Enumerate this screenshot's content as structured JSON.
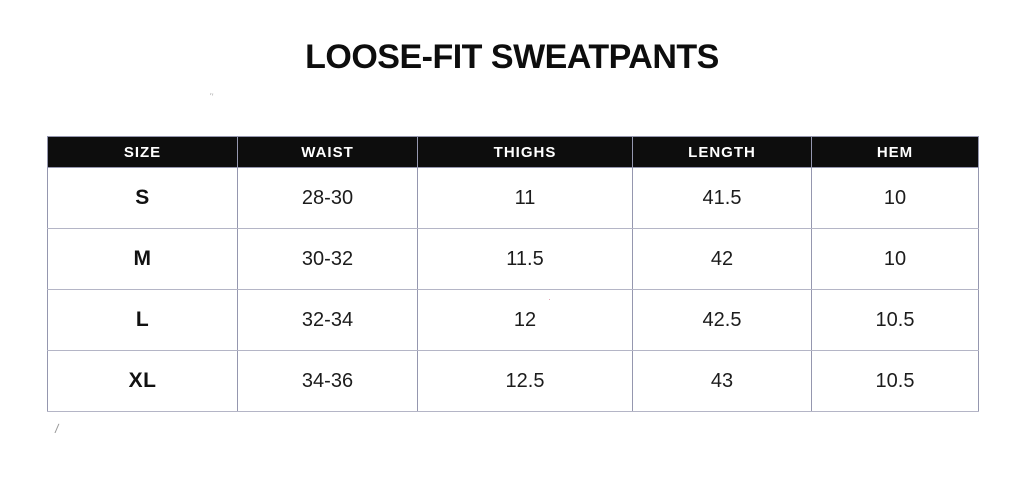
{
  "chart_data": {
    "type": "table",
    "title": "LOOSE-FIT SWEATPANTS",
    "columns": [
      "SIZE",
      "WAIST",
      "THIGHS",
      "LENGTH",
      "HEM"
    ],
    "rows": [
      [
        "S",
        "28-30",
        "11",
        "41.5",
        "10"
      ],
      [
        "M",
        "30-32",
        "11.5",
        "42",
        "10"
      ],
      [
        "L",
        "32-34",
        "12",
        "42.5",
        "10.5"
      ],
      [
        "XL",
        "34-36",
        "12.5",
        "43",
        "10.5"
      ]
    ]
  },
  "colors": {
    "background": "#ffffff",
    "title_text": "#0d0d0d",
    "header_bg": "#0d0d0d",
    "header_text": "#ffffff",
    "cell_text": "#1c1c1c",
    "grid_vertical": "#9597af",
    "grid_horizontal": "#b4b5c6"
  },
  "specks": [
    {
      "char": "''"
    },
    {
      "char": "·"
    },
    {
      "char": "/"
    }
  ]
}
